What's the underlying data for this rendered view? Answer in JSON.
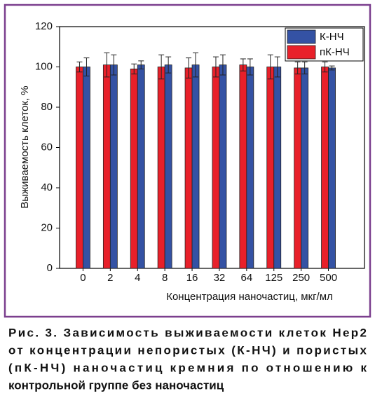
{
  "chart_data": {
    "type": "bar",
    "y_label": "Выживаемость клеток, %",
    "x_label": "Концентрация наночастиц, мкг/мл",
    "categories": [
      "0",
      "2",
      "4",
      "8",
      "16",
      "32",
      "64",
      "125",
      "250",
      "500"
    ],
    "series": [
      {
        "name": "пК-НЧ",
        "color": "#e8202a",
        "values": [
          100,
          101,
          99,
          100,
          99.5,
          100,
          101,
          100,
          99.5,
          100
        ],
        "errors": [
          2.5,
          6,
          2.5,
          6,
          5,
          5,
          3,
          6,
          3,
          2.5
        ]
      },
      {
        "name": "К-НЧ",
        "color": "#3452a4",
        "values": [
          100,
          101,
          101,
          101,
          101,
          101,
          100,
          100,
          99.5,
          99.5
        ],
        "errors": [
          4.5,
          5,
          2,
          4,
          6,
          5,
          4,
          5,
          3,
          1
        ]
      }
    ],
    "ylim": [
      0,
      120
    ],
    "yticks": [
      0,
      20,
      40,
      60,
      80,
      100,
      120
    ],
    "legend": "top-right",
    "caption": [
      "Рис. 3. Зависимость выживаемости клеток Hep2",
      "от концентрации непористых (К-НЧ) и пористых",
      "(пК-НЧ) наночастиц кремния по отношению к",
      "контрольной группе без наночастиц"
    ]
  }
}
